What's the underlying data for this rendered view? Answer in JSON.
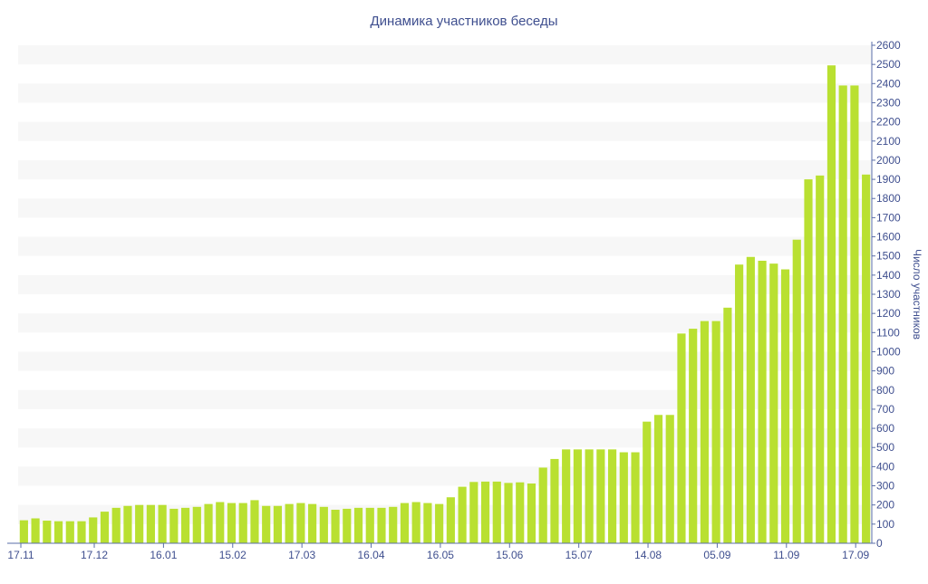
{
  "chart_data": {
    "type": "bar",
    "title": "Динамика участников беседы",
    "ylabel": "Число участников",
    "xlabel": "",
    "ylim": [
      0,
      2600
    ],
    "y_ticks": [
      0,
      100,
      200,
      300,
      400,
      500,
      600,
      700,
      800,
      900,
      1000,
      1100,
      1200,
      1300,
      1400,
      1500,
      1600,
      1700,
      1800,
      1900,
      2000,
      2100,
      2200,
      2300,
      2400,
      2500,
      2600
    ],
    "y_axis_side": "right",
    "grid": "alternating horizontal bands",
    "legend": "none",
    "x_ticks": [
      {
        "label": "17.11",
        "index": 0
      },
      {
        "label": "17.12",
        "index": 6
      },
      {
        "label": "16.01",
        "index": 12
      },
      {
        "label": "15.02",
        "index": 18
      },
      {
        "label": "17.03",
        "index": 24
      },
      {
        "label": "16.04",
        "index": 30
      },
      {
        "label": "16.05",
        "index": 36
      },
      {
        "label": "15.06",
        "index": 42
      },
      {
        "label": "15.07",
        "index": 48
      },
      {
        "label": "14.08",
        "index": 54
      },
      {
        "label": "05.09",
        "index": 60
      },
      {
        "label": "11.09",
        "index": 66
      },
      {
        "label": "17.09",
        "index": 72
      }
    ],
    "values": [
      120,
      130,
      118,
      115,
      115,
      115,
      135,
      165,
      185,
      195,
      200,
      200,
      200,
      180,
      185,
      190,
      205,
      215,
      210,
      210,
      225,
      195,
      195,
      205,
      210,
      205,
      190,
      175,
      180,
      185,
      185,
      185,
      190,
      210,
      215,
      210,
      205,
      240,
      295,
      320,
      322,
      322,
      315,
      318,
      312,
      395,
      440,
      490,
      490,
      490,
      490,
      490,
      475,
      475,
      635,
      670,
      670,
      1095,
      1120,
      1160,
      1160,
      1230,
      1455,
      1495,
      1475,
      1460,
      1430,
      1585,
      1900,
      1920,
      2495,
      2390,
      2390,
      1925
    ],
    "colors": {
      "bar": "#b9e031",
      "band": "#f7f7f7",
      "axis": "#5a6da8",
      "text": "#3f4f8f"
    }
  }
}
